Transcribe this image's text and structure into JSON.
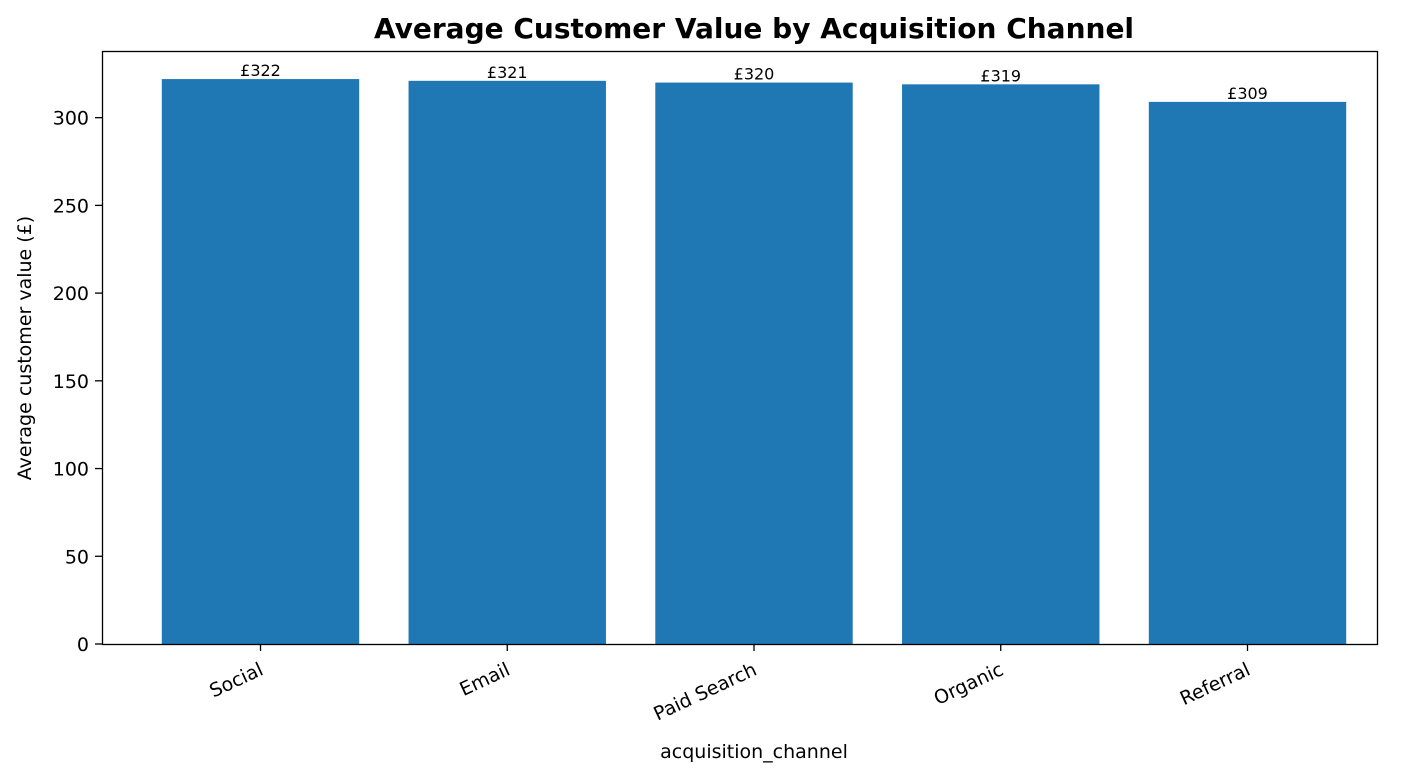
{
  "chart_data": {
    "type": "bar",
    "title": "Average Customer Value by Acquisition Channel",
    "xlabel": "acquisition_channel",
    "ylabel": "Average customer value (£)",
    "categories": [
      "Social",
      "Email",
      "Paid Search",
      "Organic",
      "Referral"
    ],
    "values": [
      322,
      321,
      320,
      319,
      309
    ],
    "data_labels": [
      "£322",
      "£321",
      "£320",
      "£319",
      "£309"
    ],
    "ylim": [
      0,
      338
    ],
    "yticks": [
      0,
      50,
      100,
      150,
      200,
      250,
      300
    ],
    "ytick_labels": [
      "0",
      "50",
      "100",
      "150",
      "200",
      "250",
      "300"
    ],
    "bar_color": "#1f77b4",
    "grid": false,
    "legend": "none"
  }
}
